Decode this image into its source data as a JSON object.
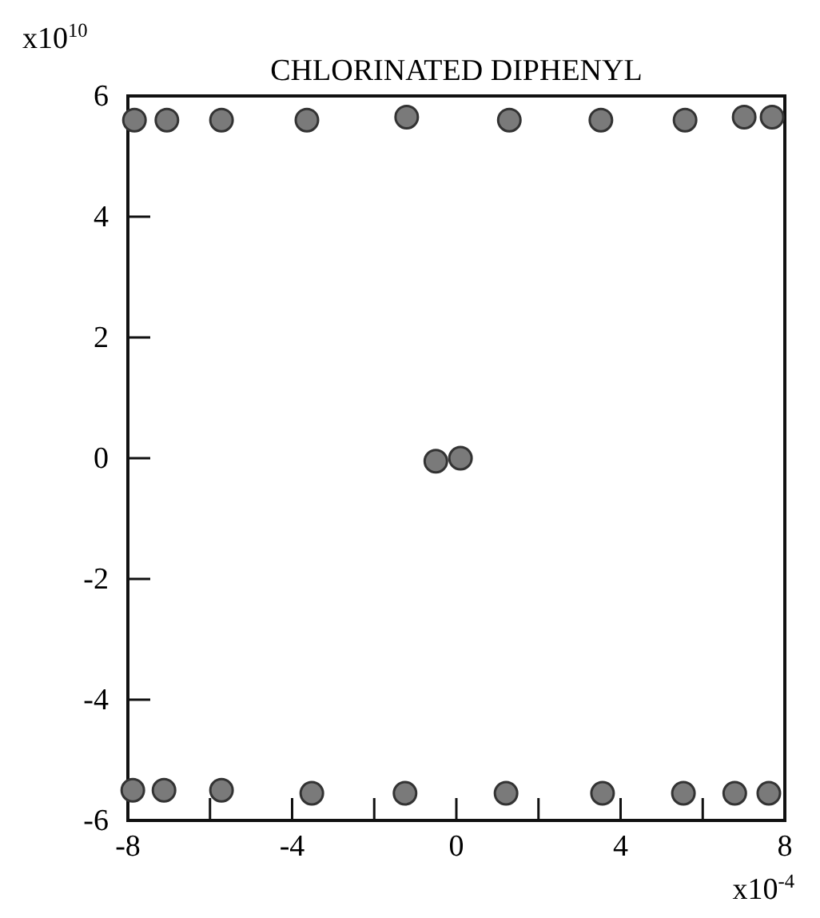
{
  "chart_data": {
    "type": "scatter",
    "title": "CHLORINATED DIPHENYL",
    "x": [
      -7.84,
      -7.05,
      -5.72,
      -3.64,
      -1.21,
      1.29,
      3.52,
      5.57,
      7.01,
      7.69,
      -7.88,
      -7.12,
      -5.72,
      -3.52,
      -1.25,
      1.21,
      3.56,
      5.53,
      6.78,
      7.61,
      -0.5,
      0.1
    ],
    "values": [
      5.6,
      5.6,
      5.6,
      5.6,
      5.65,
      5.6,
      5.6,
      5.6,
      5.65,
      5.65,
      -5.5,
      -5.5,
      -5.5,
      -5.55,
      -5.55,
      -5.55,
      -5.55,
      -5.55,
      -5.55,
      -5.55,
      -0.05,
      0
    ],
    "color": "#7a7a7a",
    "marker": "circle",
    "grid": false,
    "xlim": [
      -8,
      8
    ],
    "ylim": [
      -6,
      6
    ],
    "xticks": [
      -8,
      {
        "value": -6,
        "label": null
      },
      -4,
      {
        "value": -2,
        "label": null
      },
      0,
      {
        "value": 2,
        "label": null
      },
      4,
      {
        "value": 6,
        "label": null
      },
      8
    ],
    "yticks": [
      -6,
      -4,
      -2,
      0,
      2,
      4,
      6
    ],
    "annotations": [
      "x10$^{10}$",
      "x10$^{-4}$"
    ]
  }
}
